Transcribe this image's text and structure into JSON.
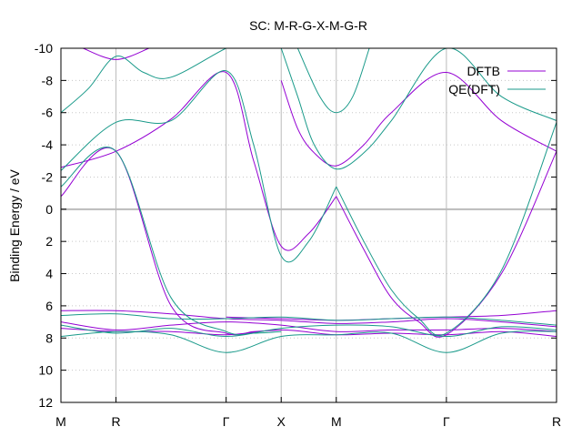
{
  "chart_data": {
    "type": "line",
    "title": "SC: M-R-G-X-M-G-R",
    "ylabel": "Binding Energy / eV",
    "xlabel": "",
    "ylim": [
      -10,
      12
    ],
    "y_reversed": true,
    "xlim": [
      0,
      9.0
    ],
    "yticks": [
      -10,
      -8,
      -6,
      -4,
      -2,
      0,
      2,
      4,
      6,
      8,
      10,
      12
    ],
    "ytick_labels": [
      "-10",
      "-8",
      "-6",
      "-4",
      "-2",
      "0",
      "2",
      "4",
      "6",
      "8",
      "10",
      "12"
    ],
    "kpoints": [
      {
        "label": "M",
        "x": 0.0
      },
      {
        "label": "R",
        "x": 1.0
      },
      {
        "label": "Γ",
        "x": 3.0
      },
      {
        "label": "X",
        "x": 4.0
      },
      {
        "label": "M",
        "x": 5.0
      },
      {
        "label": "Γ",
        "x": 7.0
      },
      {
        "label": "R",
        "x": 9.0
      }
    ],
    "grid": true,
    "legend": "top-right",
    "series": [
      {
        "name": "DFTB",
        "color": "#9400d3",
        "bands": [
          {
            "x": [
              0,
              1,
              2,
              3,
              3.5,
              4
            ],
            "y": [
              -0.8,
              -3.6,
              6.0,
              7.7,
              7.6,
              7.5
            ]
          },
          {
            "x": [
              0,
              1,
              2,
              3,
              3.5,
              4,
              4.5,
              5
            ],
            "y": [
              -2.6,
              -3.6,
              -5.6,
              -8.5,
              -3.0,
              2.3,
              1.5,
              -0.8
            ]
          },
          {
            "x": [
              3,
              4,
              5,
              6,
              7,
              8,
              9
            ],
            "y": [
              6.7,
              6.8,
              6.9,
              6.8,
              6.7,
              6.6,
              6.3
            ]
          },
          {
            "x": [
              0,
              1,
              2,
              3,
              4,
              5,
              6,
              7,
              8,
              9
            ],
            "y": [
              6.3,
              6.3,
              6.5,
              6.8,
              6.9,
              7.1,
              7.0,
              6.8,
              7.0,
              7.3
            ]
          },
          {
            "x": [
              0,
              1,
              2,
              3,
              4,
              5,
              6,
              7,
              8,
              9
            ],
            "y": [
              7.0,
              7.5,
              7.2,
              7.0,
              7.2,
              7.6,
              7.5,
              7.5,
              7.4,
              7.6
            ]
          },
          {
            "x": [
              0,
              1,
              2,
              3,
              4,
              5,
              6,
              7,
              8,
              9
            ],
            "y": [
              7.4,
              7.6,
              7.6,
              7.8,
              7.5,
              7.8,
              7.7,
              7.8,
              7.6,
              7.9
            ]
          },
          {
            "x": [
              5,
              5.5,
              6,
              6.5,
              7,
              8,
              9
            ],
            "y": [
              -0.8,
              2.5,
              5.5,
              7.0,
              7.8,
              4.0,
              -3.6
            ]
          },
          {
            "x": [
              4,
              4.3,
              4.6,
              5,
              5.5,
              6,
              7,
              8,
              9
            ],
            "y": [
              -8.0,
              -5.0,
              -3.5,
              -2.7,
              -4.0,
              -6.0,
              -8.5,
              -5.5,
              -3.6
            ]
          },
          {
            "x": [
              0.4,
              1,
              1.6
            ],
            "y": [
              -10,
              -9.3,
              -10
            ]
          }
        ]
      },
      {
        "name": "QE(DFT)",
        "color": "#1a9a8a",
        "bands": [
          {
            "x": [
              0,
              1,
              2,
              3,
              3.5,
              4
            ],
            "y": [
              -1.4,
              -3.6,
              5.5,
              7.6,
              7.7,
              7.6
            ]
          },
          {
            "x": [
              0,
              1,
              2,
              3,
              3.5,
              4,
              4.5,
              5
            ],
            "y": [
              -2.4,
              -5.4,
              -5.5,
              -8.6,
              -4.0,
              2.9,
              2.0,
              -1.4
            ]
          },
          {
            "x": [
              0,
              0.5,
              1,
              1.5,
              2,
              3,
              3.2
            ],
            "y": [
              -6.0,
              -7.5,
              -9.5,
              -8.5,
              -8.2,
              -10,
              -10
            ]
          },
          {
            "x": [
              0,
              1,
              2,
              3,
              4,
              5,
              6,
              7,
              8,
              9
            ],
            "y": [
              6.6,
              6.5,
              6.8,
              6.8,
              6.7,
              6.9,
              6.8,
              6.7,
              6.9,
              7.2
            ]
          },
          {
            "x": [
              0,
              1,
              2,
              3,
              4,
              5,
              6,
              7,
              8,
              9
            ],
            "y": [
              7.2,
              7.7,
              7.4,
              7.9,
              7.4,
              7.2,
              7.3,
              7.9,
              7.3,
              7.5
            ]
          },
          {
            "x": [
              0,
              1,
              2,
              3,
              4,
              5,
              6,
              7,
              8,
              9
            ],
            "y": [
              7.9,
              7.6,
              7.8,
              8.9,
              7.9,
              7.8,
              7.7,
              8.9,
              7.7,
              7.6
            ]
          },
          {
            "x": [
              5,
              5.5,
              6,
              6.5,
              7,
              8,
              9
            ],
            "y": [
              -1.4,
              2.0,
              5.0,
              6.8,
              7.7,
              3.8,
              -5.4
            ]
          },
          {
            "x": [
              4,
              4.3,
              4.6,
              5,
              5.5,
              6,
              7,
              8,
              9
            ],
            "y": [
              -10,
              -7.0,
              -4.0,
              -2.5,
              -3.5,
              -5.5,
              -10,
              -7.0,
              -5.5
            ]
          },
          {
            "x": [
              4.3,
              4.7,
              5,
              5.3,
              5.6
            ],
            "y": [
              -10,
              -7.0,
              -6.0,
              -7.0,
              -10
            ]
          }
        ]
      }
    ]
  }
}
